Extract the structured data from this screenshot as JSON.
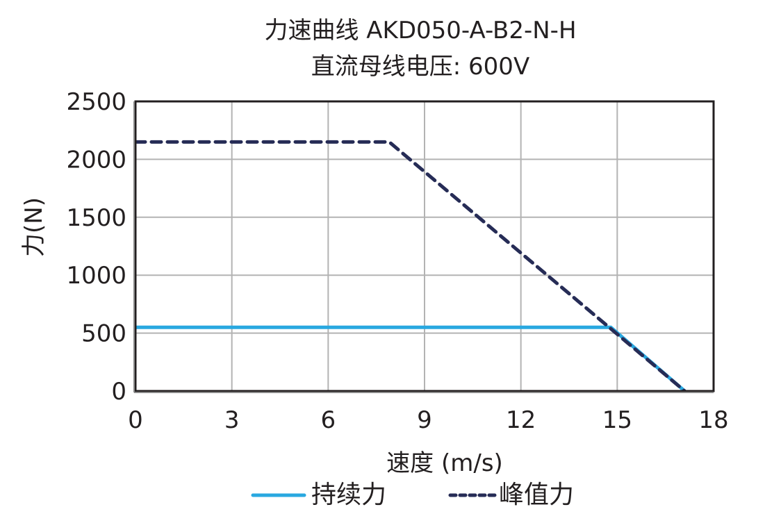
{
  "chart_data": {
    "type": "line",
    "title": "力速曲线 AKD050-A-B2-N-H",
    "subtitle": "直流母线电压: 600V",
    "xlabel": "速度 (m/s)",
    "ylabel": "力(N)",
    "xlim": [
      0,
      18
    ],
    "ylim": [
      0,
      2500
    ],
    "x_ticks": [
      "0",
      "3",
      "6",
      "9",
      "12",
      "15",
      "18"
    ],
    "y_ticks": [
      "0",
      "500",
      "1000",
      "1500",
      "2000",
      "2500"
    ],
    "grid": true,
    "legend_position": "bottom",
    "series": [
      {
        "name": "持续力",
        "style": "solid",
        "color": "#29a8e0",
        "points": [
          [
            0,
            550
          ],
          [
            14.8,
            550
          ],
          [
            17.1,
            0
          ]
        ]
      },
      {
        "name": "峰值力",
        "style": "dashed",
        "color": "#262c56",
        "points": [
          [
            0,
            2150
          ],
          [
            7.9,
            2150
          ],
          [
            17.1,
            0
          ]
        ]
      }
    ]
  }
}
